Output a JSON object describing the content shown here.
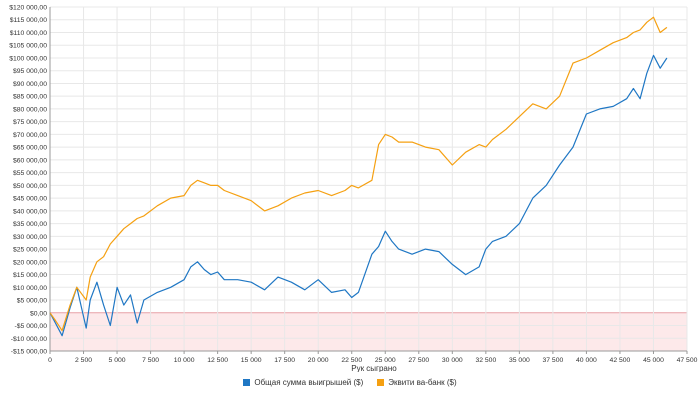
{
  "colors": {
    "series_blue": "#1f77c4",
    "series_orange": "#f5a011",
    "negative_zone": "#fde9ea",
    "grid": "#e8e8e8",
    "axis": "#999999",
    "text": "#333333"
  },
  "chart_data": {
    "type": "line",
    "title": "",
    "xlabel": "Рук сыграно",
    "ylabel": "",
    "xlim": [
      0,
      47500
    ],
    "ylim": [
      -15000,
      120000
    ],
    "grid": true,
    "legend_position": "bottom",
    "shaded_negative_region": true,
    "x_ticks": [
      0,
      2500,
      5000,
      7500,
      10000,
      12500,
      15000,
      17500,
      20000,
      22500,
      25000,
      27500,
      30000,
      32500,
      35000,
      37500,
      40000,
      42500,
      45000,
      47500
    ],
    "x_tick_labels": [
      "0",
      "2 500",
      "5 000",
      "7 500",
      "10 000",
      "12 500",
      "15 000",
      "17 500",
      "20 000",
      "22 500",
      "25 000",
      "27 500",
      "30 000",
      "32 500",
      "35 000",
      "37 500",
      "40 000",
      "42 500",
      "45 000",
      "47 500"
    ],
    "y_ticks": [
      -15000,
      -10000,
      -5000,
      0,
      5000,
      10000,
      15000,
      20000,
      25000,
      30000,
      35000,
      40000,
      45000,
      50000,
      55000,
      60000,
      65000,
      70000,
      75000,
      80000,
      85000,
      90000,
      95000,
      100000,
      105000,
      110000,
      115000,
      120000
    ],
    "y_tick_labels": [
      "-$15 000,00",
      "-$10 000,00",
      "-$5 000,00",
      "$0,00",
      "$5 000,00",
      "$10 000,00",
      "$15 000,00",
      "$20 000,00",
      "$25 000,00",
      "$30 000,00",
      "$35 000,00",
      "$40 000,00",
      "$45 000,00",
      "$50 000,00",
      "$55 000,00",
      "$60 000,00",
      "$65 000,00",
      "$70 000,00",
      "$75 000,00",
      "$80 000,00",
      "$85 000,00",
      "$90 000,00",
      "$95 000,00",
      "$100 000,00",
      "$105 000,00",
      "$110 000,00",
      "$115 000,00",
      "$120 000,00"
    ],
    "series": [
      {
        "name": "Общая сумма выигрышей ($)",
        "color": "#1f77c4",
        "x": [
          0,
          400,
          900,
          1500,
          2000,
          2700,
          3000,
          3500,
          4000,
          4500,
          5000,
          5500,
          6000,
          6500,
          7000,
          8000,
          9000,
          10000,
          10500,
          11000,
          11500,
          12000,
          12500,
          13000,
          14000,
          15000,
          16000,
          17000,
          18000,
          19000,
          20000,
          21000,
          22000,
          22500,
          23000,
          24000,
          24500,
          25000,
          25500,
          26000,
          27000,
          28000,
          29000,
          30000,
          31000,
          32000,
          32500,
          33000,
          34000,
          35000,
          36000,
          37000,
          38000,
          39000,
          40000,
          41000,
          42000,
          43000,
          43500,
          44000,
          44500,
          45000,
          45500,
          46000
        ],
        "y": [
          0,
          -4000,
          -9000,
          2000,
          10000,
          -6000,
          5000,
          12000,
          3000,
          -5000,
          10000,
          3000,
          7000,
          -4000,
          5000,
          8000,
          10000,
          13000,
          18000,
          20000,
          17000,
          15000,
          16000,
          13000,
          13000,
          12000,
          9000,
          14000,
          12000,
          9000,
          13000,
          8000,
          9000,
          6000,
          8000,
          23000,
          26000,
          32000,
          28000,
          25000,
          23000,
          25000,
          24000,
          19000,
          15000,
          18000,
          25000,
          28000,
          30000,
          35000,
          45000,
          50000,
          58000,
          65000,
          78000,
          80000,
          81000,
          84000,
          88000,
          84000,
          94000,
          101000,
          96000,
          100000
        ]
      },
      {
        "name": "Эквити ва-банк ($)",
        "color": "#f5a011",
        "x": [
          0,
          400,
          900,
          1500,
          2000,
          2700,
          3000,
          3500,
          4000,
          4500,
          5000,
          5500,
          6000,
          6500,
          7000,
          8000,
          9000,
          10000,
          10500,
          11000,
          11500,
          12000,
          12500,
          13000,
          14000,
          15000,
          16000,
          17000,
          18000,
          19000,
          20000,
          21000,
          22000,
          22500,
          23000,
          24000,
          24500,
          25000,
          25500,
          26000,
          27000,
          28000,
          29000,
          30000,
          31000,
          32000,
          32500,
          33000,
          34000,
          35000,
          36000,
          37000,
          38000,
          39000,
          40000,
          41000,
          42000,
          43000,
          43500,
          44000,
          44500,
          45000,
          45500,
          46000
        ],
        "y": [
          0,
          -3000,
          -7000,
          3000,
          10000,
          5000,
          14000,
          20000,
          22000,
          27000,
          30000,
          33000,
          35000,
          37000,
          38000,
          42000,
          45000,
          46000,
          50000,
          52000,
          51000,
          50000,
          50000,
          48000,
          46000,
          44000,
          40000,
          42000,
          45000,
          47000,
          48000,
          46000,
          48000,
          50000,
          49000,
          52000,
          66000,
          70000,
          69000,
          67000,
          67000,
          65000,
          64000,
          58000,
          63000,
          66000,
          65000,
          68000,
          72000,
          77000,
          82000,
          80000,
          85000,
          98000,
          100000,
          103000,
          106000,
          108000,
          110000,
          111000,
          114000,
          116000,
          110000,
          112000
        ]
      }
    ]
  }
}
